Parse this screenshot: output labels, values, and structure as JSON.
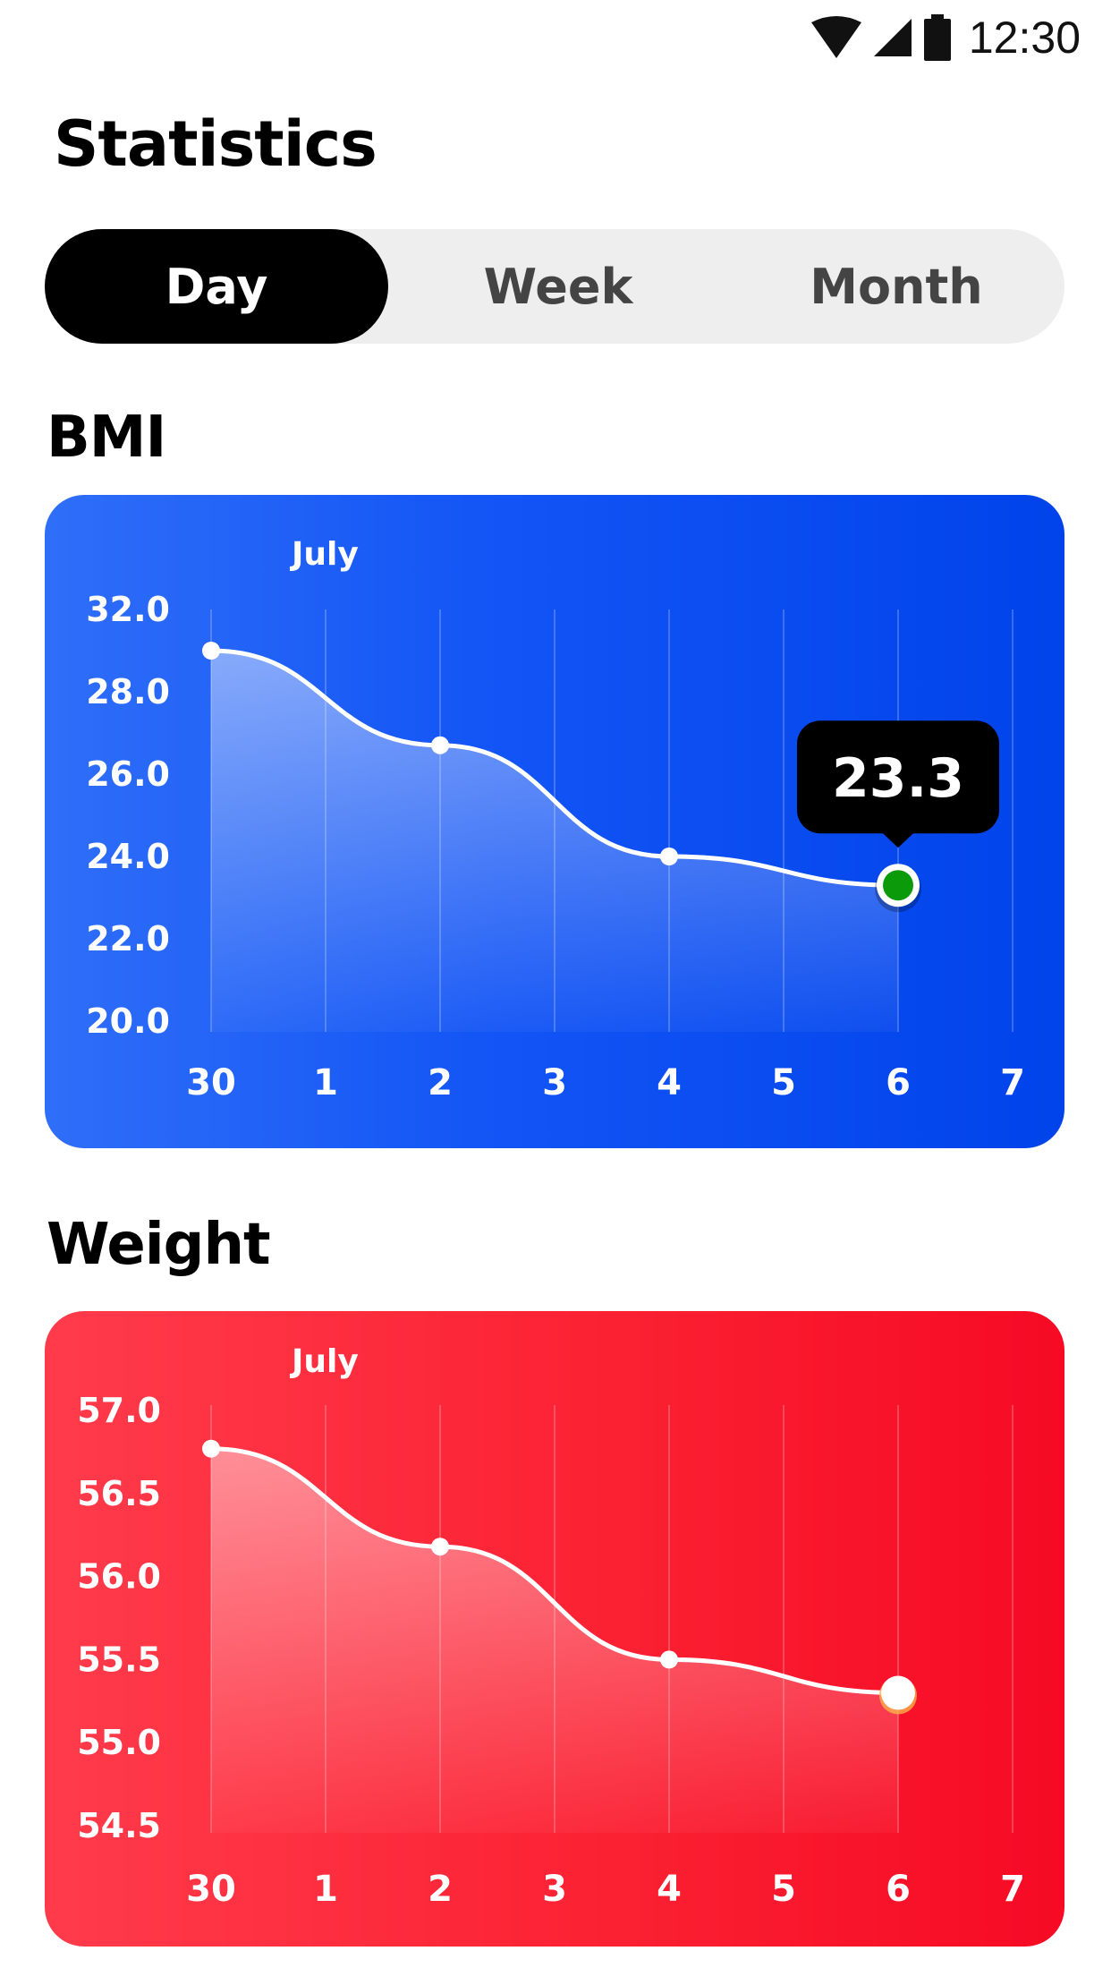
{
  "status_bar": {
    "time": "12:30",
    "icons": [
      "wifi-icon",
      "cell-signal-icon",
      "battery-icon"
    ]
  },
  "header": {
    "title": "Statistics"
  },
  "tabs": [
    {
      "label": "Day",
      "active": true
    },
    {
      "label": "Week",
      "active": false
    },
    {
      "label": "Month",
      "active": false
    }
  ],
  "sections": {
    "bmi": {
      "title": "BMI"
    },
    "weight": {
      "title": "Weight"
    }
  },
  "colors": {
    "bmi_card": "#1254f5",
    "weight_card": "#fb2133",
    "active_tab": "#000000",
    "tab_track": "#eeeeee",
    "bmi_selected_point": "#0a9a0a",
    "tooltip_bg": "#000000"
  },
  "chart_data": [
    {
      "type": "area",
      "month_label": "July",
      "categories": [
        "30",
        "1",
        "2",
        "3",
        "4",
        "5",
        "6",
        "7"
      ],
      "y_ticks": [
        "32.0",
        "28.0",
        "26.0",
        "24.0",
        "22.0",
        "20.0"
      ],
      "ylim": [
        20,
        30
      ],
      "grid": true,
      "points": [
        {
          "x": "30",
          "y": 29.0
        },
        {
          "x": "2",
          "y": 26.7
        },
        {
          "x": "4",
          "y": 24.0
        },
        {
          "x": "6",
          "y": 23.3
        }
      ],
      "selected": {
        "x": "6",
        "label": "23.3"
      }
    },
    {
      "type": "area",
      "month_label": "July",
      "categories": [
        "30",
        "1",
        "2",
        "3",
        "4",
        "5",
        "6",
        "7"
      ],
      "y_ticks": [
        "57.0",
        "56.5",
        "56.0",
        "55.5",
        "55.0",
        "54.5"
      ],
      "ylim": [
        54.5,
        57.0
      ],
      "grid": true,
      "points": [
        {
          "x": "30",
          "y": 56.77
        },
        {
          "x": "2",
          "y": 56.18
        },
        {
          "x": "4",
          "y": 55.5
        },
        {
          "x": "6",
          "y": 55.3
        }
      ],
      "selected": {
        "x": "6"
      }
    }
  ]
}
